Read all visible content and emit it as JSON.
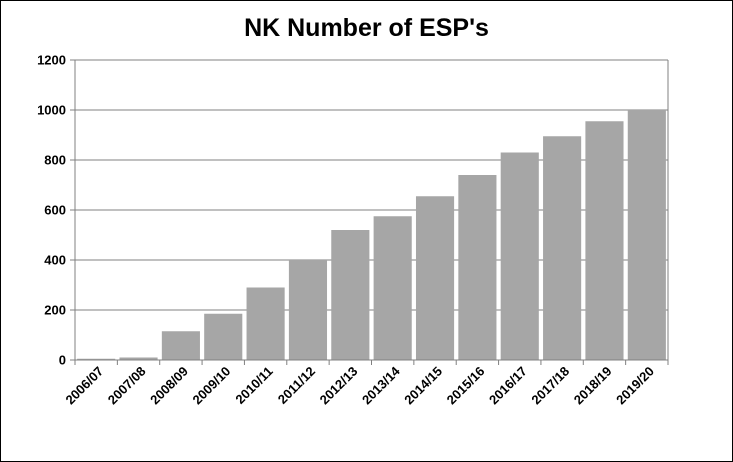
{
  "chart_data": {
    "type": "bar",
    "title": "NK Number of ESP's",
    "xlabel": "",
    "ylabel": "",
    "categories": [
      "2006/07",
      "2007/08",
      "2008/09",
      "2009/10",
      "2010/11",
      "2011/12",
      "2012/13",
      "2013/14",
      "2014/15",
      "2015/16",
      "2016/17",
      "2017/18",
      "2018/19",
      "2019/20"
    ],
    "values": [
      5,
      10,
      115,
      185,
      290,
      400,
      520,
      575,
      655,
      740,
      830,
      895,
      955,
      1000
    ],
    "ylim": [
      0,
      1200
    ],
    "yticks": [
      0,
      200,
      400,
      600,
      800,
      1000,
      1200
    ],
    "grid": true,
    "legend": "none",
    "colors": {
      "bar": "#a6a6a6",
      "grid": "#808080",
      "axis": "#808080"
    }
  }
}
